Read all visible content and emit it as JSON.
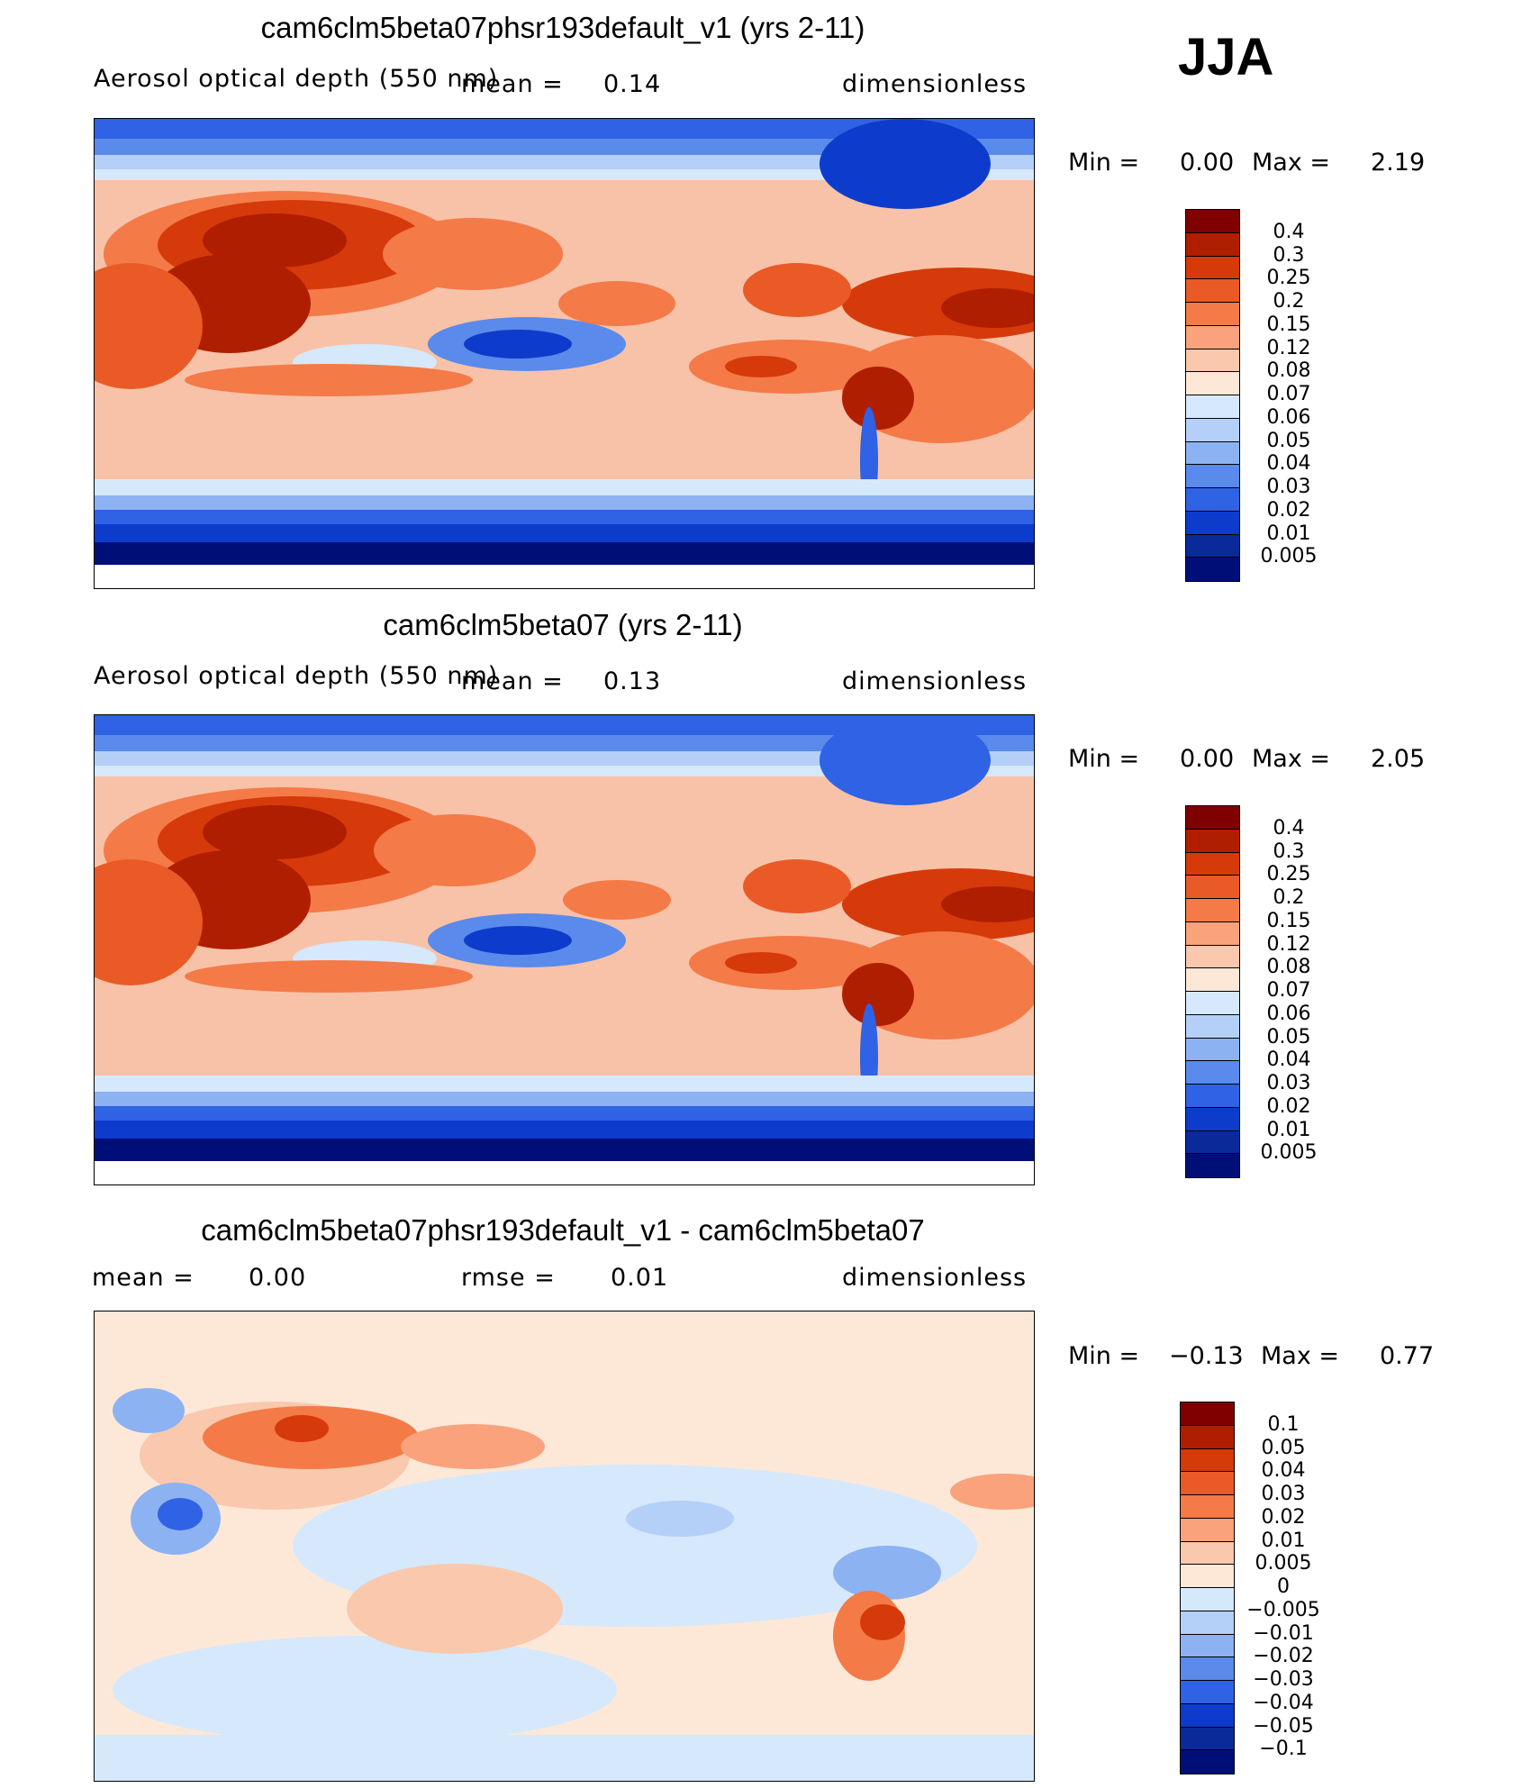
{
  "season": "JJA",
  "chart_data": [
    {
      "type": "heatmap",
      "title": "cam6clm5beta07phsr193default_v1 (yrs 2-11)",
      "variable": "Aerosol optical depth (550 nm)",
      "mean_label": "mean =",
      "mean": "0.14",
      "units": "dimensionless",
      "min_label": "Min =",
      "min": "0.00",
      "max_label": "Max =",
      "max": "2.19",
      "levels": [
        "0.4",
        "0.3",
        "0.25",
        "0.2",
        "0.15",
        "0.12",
        "0.08",
        "0.07",
        "0.06",
        "0.05",
        "0.04",
        "0.03",
        "0.02",
        "0.01",
        "0.005"
      ],
      "colors": [
        "#800000",
        "#b01e00",
        "#d63a0a",
        "#ea5a26",
        "#f47a48",
        "#f9a27c",
        "#fac8ac",
        "#fde8d8",
        "#d6e8fb",
        "#b4d0f8",
        "#8cb2f2",
        "#5a8aeb",
        "#2f62e4",
        "#0d3ccc",
        "#0a2a9a",
        "#000f78"
      ]
    },
    {
      "type": "heatmap",
      "title": "cam6clm5beta07 (yrs 2-11)",
      "variable": "Aerosol optical depth (550 nm)",
      "mean_label": "mean =",
      "mean": "0.13",
      "units": "dimensionless",
      "min_label": "Min =",
      "min": "0.00",
      "max_label": "Max =",
      "max": "2.05",
      "levels": [
        "0.4",
        "0.3",
        "0.25",
        "0.2",
        "0.15",
        "0.12",
        "0.08",
        "0.07",
        "0.06",
        "0.05",
        "0.04",
        "0.03",
        "0.02",
        "0.01",
        "0.005"
      ],
      "colors": [
        "#800000",
        "#b01e00",
        "#d63a0a",
        "#ea5a26",
        "#f47a48",
        "#f9a27c",
        "#fac8ac",
        "#fde8d8",
        "#d6e8fb",
        "#b4d0f8",
        "#8cb2f2",
        "#5a8aeb",
        "#2f62e4",
        "#0d3ccc",
        "#0a2a9a",
        "#000f78"
      ]
    },
    {
      "type": "heatmap",
      "title": "cam6clm5beta07phsr193default_v1 - cam6clm5beta07",
      "mean_label": "mean =",
      "mean": "0.00",
      "rmse_label": "rmse =",
      "rmse": "0.01",
      "units": "dimensionless",
      "min_label": "Min =",
      "min": "−0.13",
      "max_label": "Max =",
      "max": "0.77",
      "levels": [
        "0.1",
        "0.05",
        "0.04",
        "0.03",
        "0.02",
        "0.01",
        "0.005",
        "0",
        "−0.005",
        "−0.01",
        "−0.02",
        "−0.03",
        "−0.04",
        "−0.05",
        "−0.1"
      ],
      "colors": [
        "#800000",
        "#b01e00",
        "#d63a0a",
        "#ea5a26",
        "#f47a48",
        "#f9a27c",
        "#fac8ac",
        "#fde8d8",
        "#d6e8fb",
        "#b4d0f8",
        "#8cb2f2",
        "#5a8aeb",
        "#2f62e4",
        "#0d3ccc",
        "#0a2a9a",
        "#000f78"
      ]
    }
  ]
}
